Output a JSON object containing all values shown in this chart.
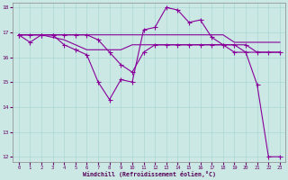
{
  "background_color": "#cbe8e4",
  "grid_color": "#aad8d4",
  "line_color": "#880099",
  "xlabel": "Windchill (Refroidissement éolien,°C)",
  "xlim": [
    -0.5,
    23.5
  ],
  "ylim": [
    11.8,
    18.2
  ],
  "yticks": [
    12,
    13,
    14,
    15,
    16,
    17,
    18
  ],
  "xticks": [
    0,
    1,
    2,
    3,
    4,
    5,
    6,
    7,
    8,
    9,
    10,
    11,
    12,
    13,
    14,
    15,
    16,
    17,
    18,
    19,
    20,
    21,
    22,
    23
  ],
  "series1_x": [
    0,
    1,
    2,
    3,
    4,
    5,
    6,
    7,
    8,
    9,
    10,
    11,
    12,
    13,
    14,
    15,
    16,
    17,
    18,
    19,
    20,
    21,
    22,
    23
  ],
  "series1_y": [
    16.9,
    16.6,
    16.9,
    16.9,
    16.5,
    16.3,
    16.1,
    15.0,
    14.3,
    15.1,
    15.0,
    17.1,
    17.2,
    18.0,
    17.9,
    17.4,
    17.5,
    16.8,
    16.5,
    16.2,
    16.2,
    14.9,
    12.0,
    12.0
  ],
  "series2_x": [
    0,
    1,
    2,
    3,
    4,
    5,
    6,
    7,
    8,
    9,
    10,
    11,
    12,
    13,
    14,
    15,
    16,
    17,
    18,
    19,
    20,
    21,
    22,
    23
  ],
  "series2_y": [
    16.9,
    16.9,
    16.9,
    16.9,
    16.9,
    16.9,
    16.9,
    16.9,
    16.9,
    16.9,
    16.9,
    16.9,
    16.9,
    16.9,
    16.9,
    16.9,
    16.9,
    16.9,
    16.9,
    16.6,
    16.6,
    16.6,
    16.6,
    16.6
  ],
  "series3_x": [
    0,
    1,
    2,
    3,
    4,
    5,
    6,
    7,
    8,
    9,
    10,
    11,
    12,
    13,
    14,
    15,
    16,
    17,
    18,
    19,
    20,
    21,
    22,
    23
  ],
  "series3_y": [
    16.9,
    16.9,
    16.9,
    16.8,
    16.7,
    16.5,
    16.3,
    16.3,
    16.3,
    16.3,
    16.5,
    16.5,
    16.5,
    16.5,
    16.5,
    16.5,
    16.5,
    16.5,
    16.5,
    16.5,
    16.2,
    16.2,
    16.2,
    16.2
  ],
  "series4_x": [
    0,
    1,
    2,
    3,
    4,
    5,
    6,
    7,
    8,
    9,
    10,
    11,
    12,
    13,
    14,
    15,
    16,
    17,
    18,
    19,
    20,
    21,
    22,
    23
  ],
  "series4_y": [
    16.9,
    16.9,
    16.9,
    16.9,
    16.9,
    16.9,
    16.9,
    16.7,
    16.2,
    15.7,
    15.4,
    16.2,
    16.5,
    16.5,
    16.5,
    16.5,
    16.5,
    16.5,
    16.5,
    16.5,
    16.5,
    16.2,
    16.2,
    16.2
  ]
}
